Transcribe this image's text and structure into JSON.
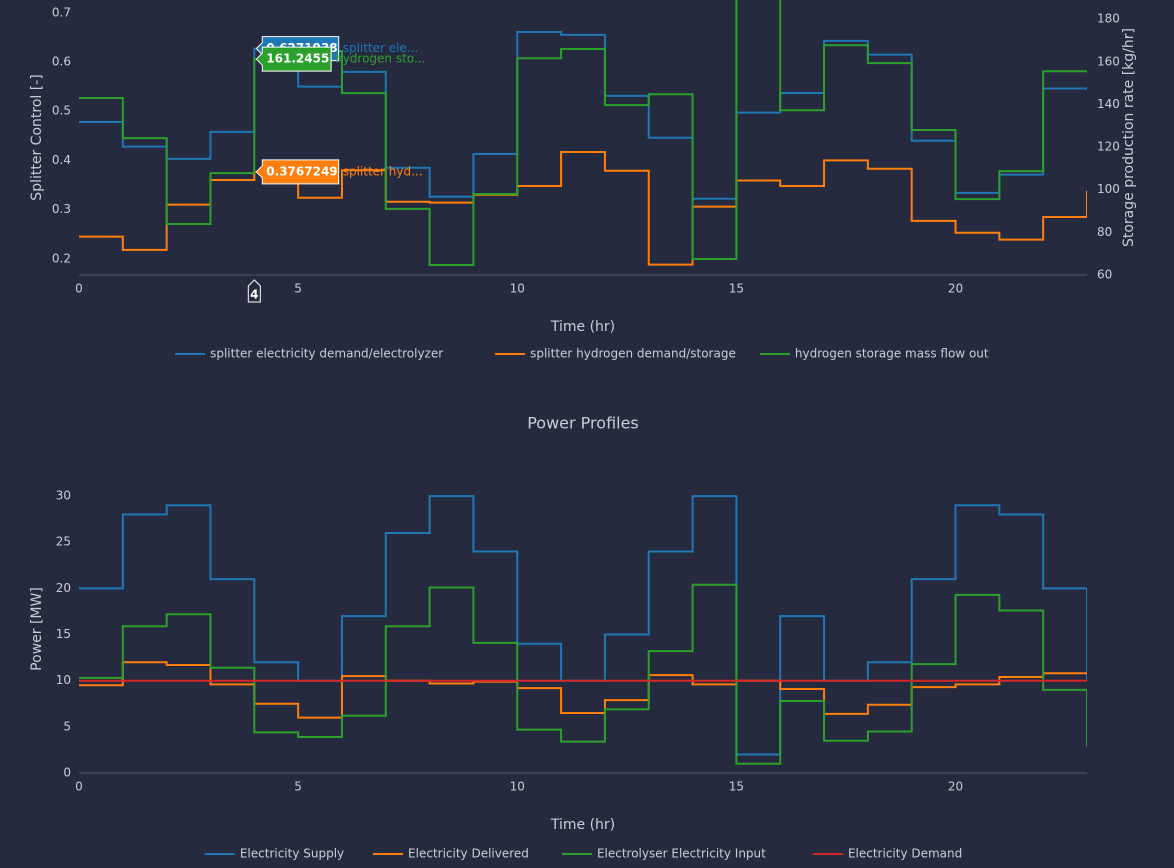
{
  "chart_data": [
    {
      "type": "line",
      "line_shape": "hv",
      "xlabel": "Time (hr)",
      "ylabel": "Splitter Control [-]",
      "y2label": "Storage production rate [kg/hr]",
      "x": [
        0,
        1,
        2,
        3,
        4,
        5,
        6,
        7,
        8,
        9,
        10,
        11,
        12,
        13,
        14,
        15,
        16,
        17,
        18,
        19,
        20,
        21,
        22,
        23
      ],
      "xlim": [
        0,
        23
      ],
      "xticks": [
        0,
        5,
        10,
        15,
        20
      ],
      "ylim": [
        0.167,
        0.726
      ],
      "yticks": [
        0.2,
        0.3,
        0.4,
        0.5,
        0.6,
        0.7
      ],
      "y2lim": [
        60,
        189
      ],
      "y2ticks": [
        60,
        80,
        100,
        120,
        140,
        160,
        180
      ],
      "legend": "bottom",
      "grid": false,
      "series": [
        {
          "name": "splitter electricity demand/electrolyzer",
          "color": "#1f77b4",
          "values": [
            0.478,
            0.428,
            0.403,
            0.458,
            0.6271938,
            0.55,
            0.58,
            0.385,
            0.326,
            0.413,
            0.661,
            0.655,
            0.531,
            0.446,
            0.322,
            0.497,
            0.537,
            0.643,
            0.615,
            0.44,
            0.334,
            0.371,
            0.546,
            0.546
          ]
        },
        {
          "name": "splitter hydrogen demand/storage",
          "color": "#ff7f0e",
          "values": [
            0.245,
            0.218,
            0.31,
            0.36,
            0.3767249,
            0.324,
            0.38,
            0.316,
            0.314,
            0.33,
            0.348,
            0.417,
            0.379,
            0.188,
            0.306,
            0.359,
            0.348,
            0.4,
            0.383,
            0.277,
            0.253,
            0.239,
            0.285,
            0.338
          ]
        },
        {
          "name": "hydrogen storage mass flow out",
          "color": "#2ca02c",
          "axis": "y2",
          "values": [
            143,
            124.2,
            83.9,
            107.8,
            161.2455,
            165,
            145.3,
            91,
            64.7,
            98,
            161.7,
            166,
            139.7,
            144.8,
            67.5,
            200,
            137.3,
            167.8,
            159.4,
            128,
            95.6,
            108.7,
            155.6,
            155.6
          ]
        }
      ],
      "hover": {
        "x": 4,
        "items": [
          {
            "series": 0,
            "value": 0.6271938,
            "label": "splitter ele..."
          },
          {
            "series": 2,
            "value": 161.2455,
            "label": "hydrogen sto..."
          },
          {
            "series": 1,
            "value": 0.3767249,
            "label": "splitter hyd..."
          }
        ]
      }
    },
    {
      "type": "line",
      "line_shape": "hv",
      "title": "Power Profiles",
      "xlabel": "Time (hr)",
      "ylabel": "Power [MW]",
      "x": [
        0,
        1,
        2,
        3,
        4,
        5,
        6,
        7,
        8,
        9,
        10,
        11,
        12,
        13,
        14,
        15,
        16,
        17,
        18,
        19,
        20,
        21,
        22,
        23
      ],
      "xlim": [
        0,
        23
      ],
      "xticks": [
        0,
        5,
        10,
        15,
        20
      ],
      "ylim": [
        0,
        31.2
      ],
      "yticks": [
        0,
        5,
        10,
        15,
        20,
        25,
        30
      ],
      "legend": "bottom",
      "grid": false,
      "series": [
        {
          "name": "Electricity Supply",
          "color": "#1f77b4",
          "values": [
            20,
            28,
            29,
            21,
            12,
            10,
            17,
            26,
            30,
            24,
            14,
            10,
            15,
            24,
            30,
            2,
            17,
            10,
            12,
            21,
            29,
            28,
            20,
            10
          ]
        },
        {
          "name": "Electricity Delivered",
          "color": "#ff7f0e",
          "values": [
            9.5,
            12,
            11.7,
            9.6,
            7.5,
            6,
            10.5,
            10,
            9.7,
            9.9,
            9.2,
            6.5,
            7.9,
            10.6,
            9.6,
            10,
            9.1,
            6.4,
            7.4,
            9.3,
            9.6,
            10.4,
            10.8,
            10.8
          ]
        },
        {
          "name": "Electrolyser Electricity Input",
          "color": "#2ca02c",
          "values": [
            10.3,
            15.9,
            17.2,
            11.4,
            4.4,
            3.9,
            6.2,
            15.9,
            20.1,
            14.1,
            4.7,
            3.4,
            6.9,
            13.2,
            20.4,
            1,
            7.8,
            3.5,
            4.5,
            11.8,
            19.3,
            17.6,
            9,
            2.9
          ]
        },
        {
          "name": "Electricity Demand",
          "color": "#d62728",
          "values": [
            10,
            10,
            10,
            10,
            10,
            10,
            10,
            10,
            10,
            10,
            10,
            10,
            10,
            10,
            10,
            10,
            10,
            10,
            10,
            10,
            10,
            10,
            10,
            10
          ]
        }
      ]
    }
  ]
}
